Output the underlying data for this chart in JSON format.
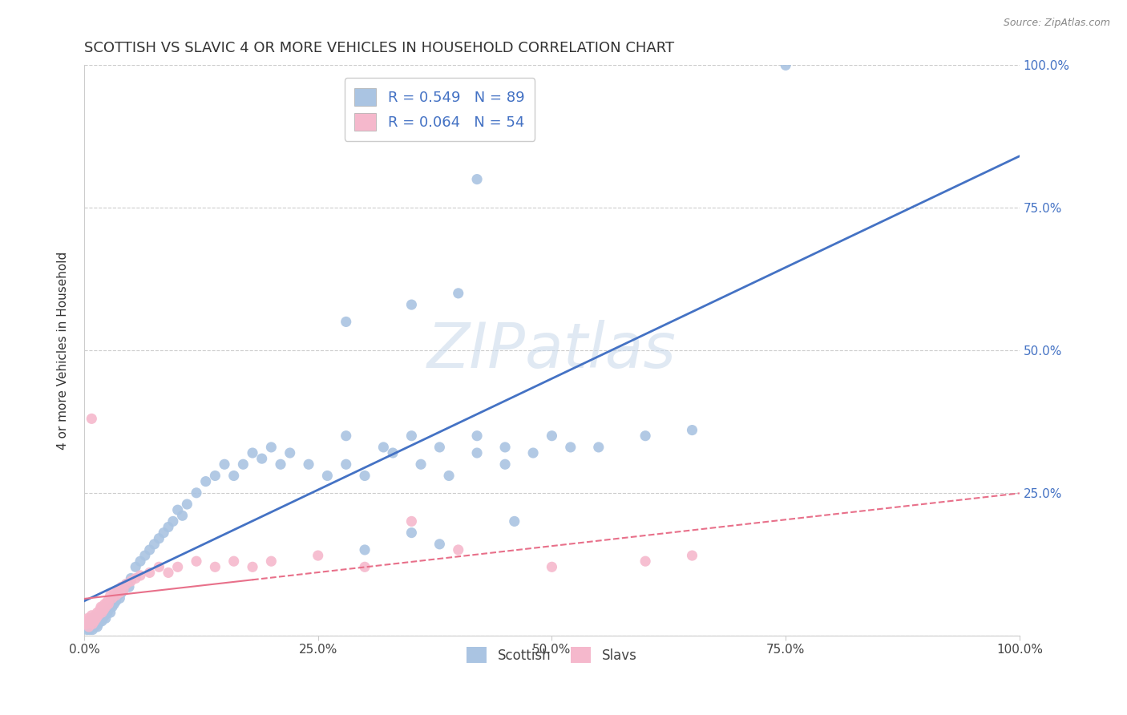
{
  "title": "SCOTTISH VS SLAVIC 4 OR MORE VEHICLES IN HOUSEHOLD CORRELATION CHART",
  "source": "Source: ZipAtlas.com",
  "ylabel": "4 or more Vehicles in Household",
  "xlim": [
    0,
    1.0
  ],
  "ylim": [
    0,
    1.0
  ],
  "xticks": [
    0.0,
    0.25,
    0.5,
    0.75,
    1.0
  ],
  "xticklabels": [
    "0.0%",
    "25.0%",
    "50.0%",
    "75.0%",
    "100.0%"
  ],
  "yticks": [
    0.0,
    0.25,
    0.5,
    0.75,
    1.0
  ],
  "yticklabels_right": [
    "",
    "25.0%",
    "50.0%",
    "75.0%",
    "100.0%"
  ],
  "legend_r1": "R = 0.549",
  "legend_n1": "N = 89",
  "legend_r2": "R = 0.064",
  "legend_n2": "N = 54",
  "scottish_color": "#aac4e2",
  "slavic_color": "#f5b8cc",
  "scottish_line_color": "#4472c4",
  "slavic_line_color": "#e8708a",
  "watermark": "ZIPatlas",
  "scottish_x": [
    0.003,
    0.004,
    0.005,
    0.006,
    0.007,
    0.008,
    0.008,
    0.009,
    0.01,
    0.01,
    0.011,
    0.012,
    0.013,
    0.014,
    0.015,
    0.016,
    0.017,
    0.018,
    0.019,
    0.02,
    0.021,
    0.022,
    0.023,
    0.025,
    0.026,
    0.028,
    0.03,
    0.032,
    0.034,
    0.036,
    0.038,
    0.04,
    0.042,
    0.045,
    0.048,
    0.05,
    0.055,
    0.06,
    0.065,
    0.07,
    0.075,
    0.08,
    0.085,
    0.09,
    0.095,
    0.1,
    0.105,
    0.11,
    0.12,
    0.13,
    0.14,
    0.15,
    0.16,
    0.17,
    0.18,
    0.19,
    0.2,
    0.21,
    0.22,
    0.24,
    0.26,
    0.28,
    0.3,
    0.33,
    0.36,
    0.39,
    0.42,
    0.45,
    0.48,
    0.52,
    0.28,
    0.32,
    0.35,
    0.38,
    0.42,
    0.45,
    0.5,
    0.55,
    0.6,
    0.65,
    0.28,
    0.35,
    0.4,
    0.42,
    0.75,
    0.3,
    0.35,
    0.38,
    0.46
  ],
  "scottish_y": [
    0.01,
    0.015,
    0.02,
    0.01,
    0.025,
    0.015,
    0.02,
    0.01,
    0.025,
    0.03,
    0.015,
    0.02,
    0.025,
    0.015,
    0.02,
    0.03,
    0.025,
    0.035,
    0.025,
    0.03,
    0.04,
    0.035,
    0.03,
    0.04,
    0.045,
    0.04,
    0.05,
    0.055,
    0.06,
    0.07,
    0.065,
    0.075,
    0.08,
    0.09,
    0.085,
    0.1,
    0.12,
    0.13,
    0.14,
    0.15,
    0.16,
    0.17,
    0.18,
    0.19,
    0.2,
    0.22,
    0.21,
    0.23,
    0.25,
    0.27,
    0.28,
    0.3,
    0.28,
    0.3,
    0.32,
    0.31,
    0.33,
    0.3,
    0.32,
    0.3,
    0.28,
    0.3,
    0.28,
    0.32,
    0.3,
    0.28,
    0.32,
    0.3,
    0.32,
    0.33,
    0.35,
    0.33,
    0.35,
    0.33,
    0.35,
    0.33,
    0.35,
    0.33,
    0.35,
    0.36,
    0.55,
    0.58,
    0.6,
    0.8,
    1.0,
    0.15,
    0.18,
    0.16,
    0.2
  ],
  "slavic_x": [
    0.002,
    0.003,
    0.004,
    0.005,
    0.006,
    0.007,
    0.008,
    0.009,
    0.01,
    0.011,
    0.012,
    0.013,
    0.014,
    0.015,
    0.016,
    0.017,
    0.018,
    0.019,
    0.02,
    0.021,
    0.022,
    0.023,
    0.024,
    0.025,
    0.026,
    0.028,
    0.03,
    0.032,
    0.034,
    0.036,
    0.038,
    0.04,
    0.042,
    0.045,
    0.05,
    0.055,
    0.06,
    0.07,
    0.08,
    0.09,
    0.1,
    0.12,
    0.14,
    0.16,
    0.18,
    0.2,
    0.25,
    0.3,
    0.4,
    0.5,
    0.6,
    0.65,
    0.008,
    0.35
  ],
  "slavic_y": [
    0.02,
    0.025,
    0.03,
    0.015,
    0.025,
    0.03,
    0.035,
    0.02,
    0.03,
    0.025,
    0.035,
    0.03,
    0.04,
    0.035,
    0.04,
    0.045,
    0.05,
    0.04,
    0.05,
    0.045,
    0.055,
    0.05,
    0.055,
    0.06,
    0.055,
    0.07,
    0.065,
    0.075,
    0.07,
    0.08,
    0.075,
    0.085,
    0.08,
    0.09,
    0.095,
    0.1,
    0.105,
    0.11,
    0.12,
    0.11,
    0.12,
    0.13,
    0.12,
    0.13,
    0.12,
    0.13,
    0.14,
    0.12,
    0.15,
    0.12,
    0.13,
    0.14,
    0.38,
    0.2
  ]
}
